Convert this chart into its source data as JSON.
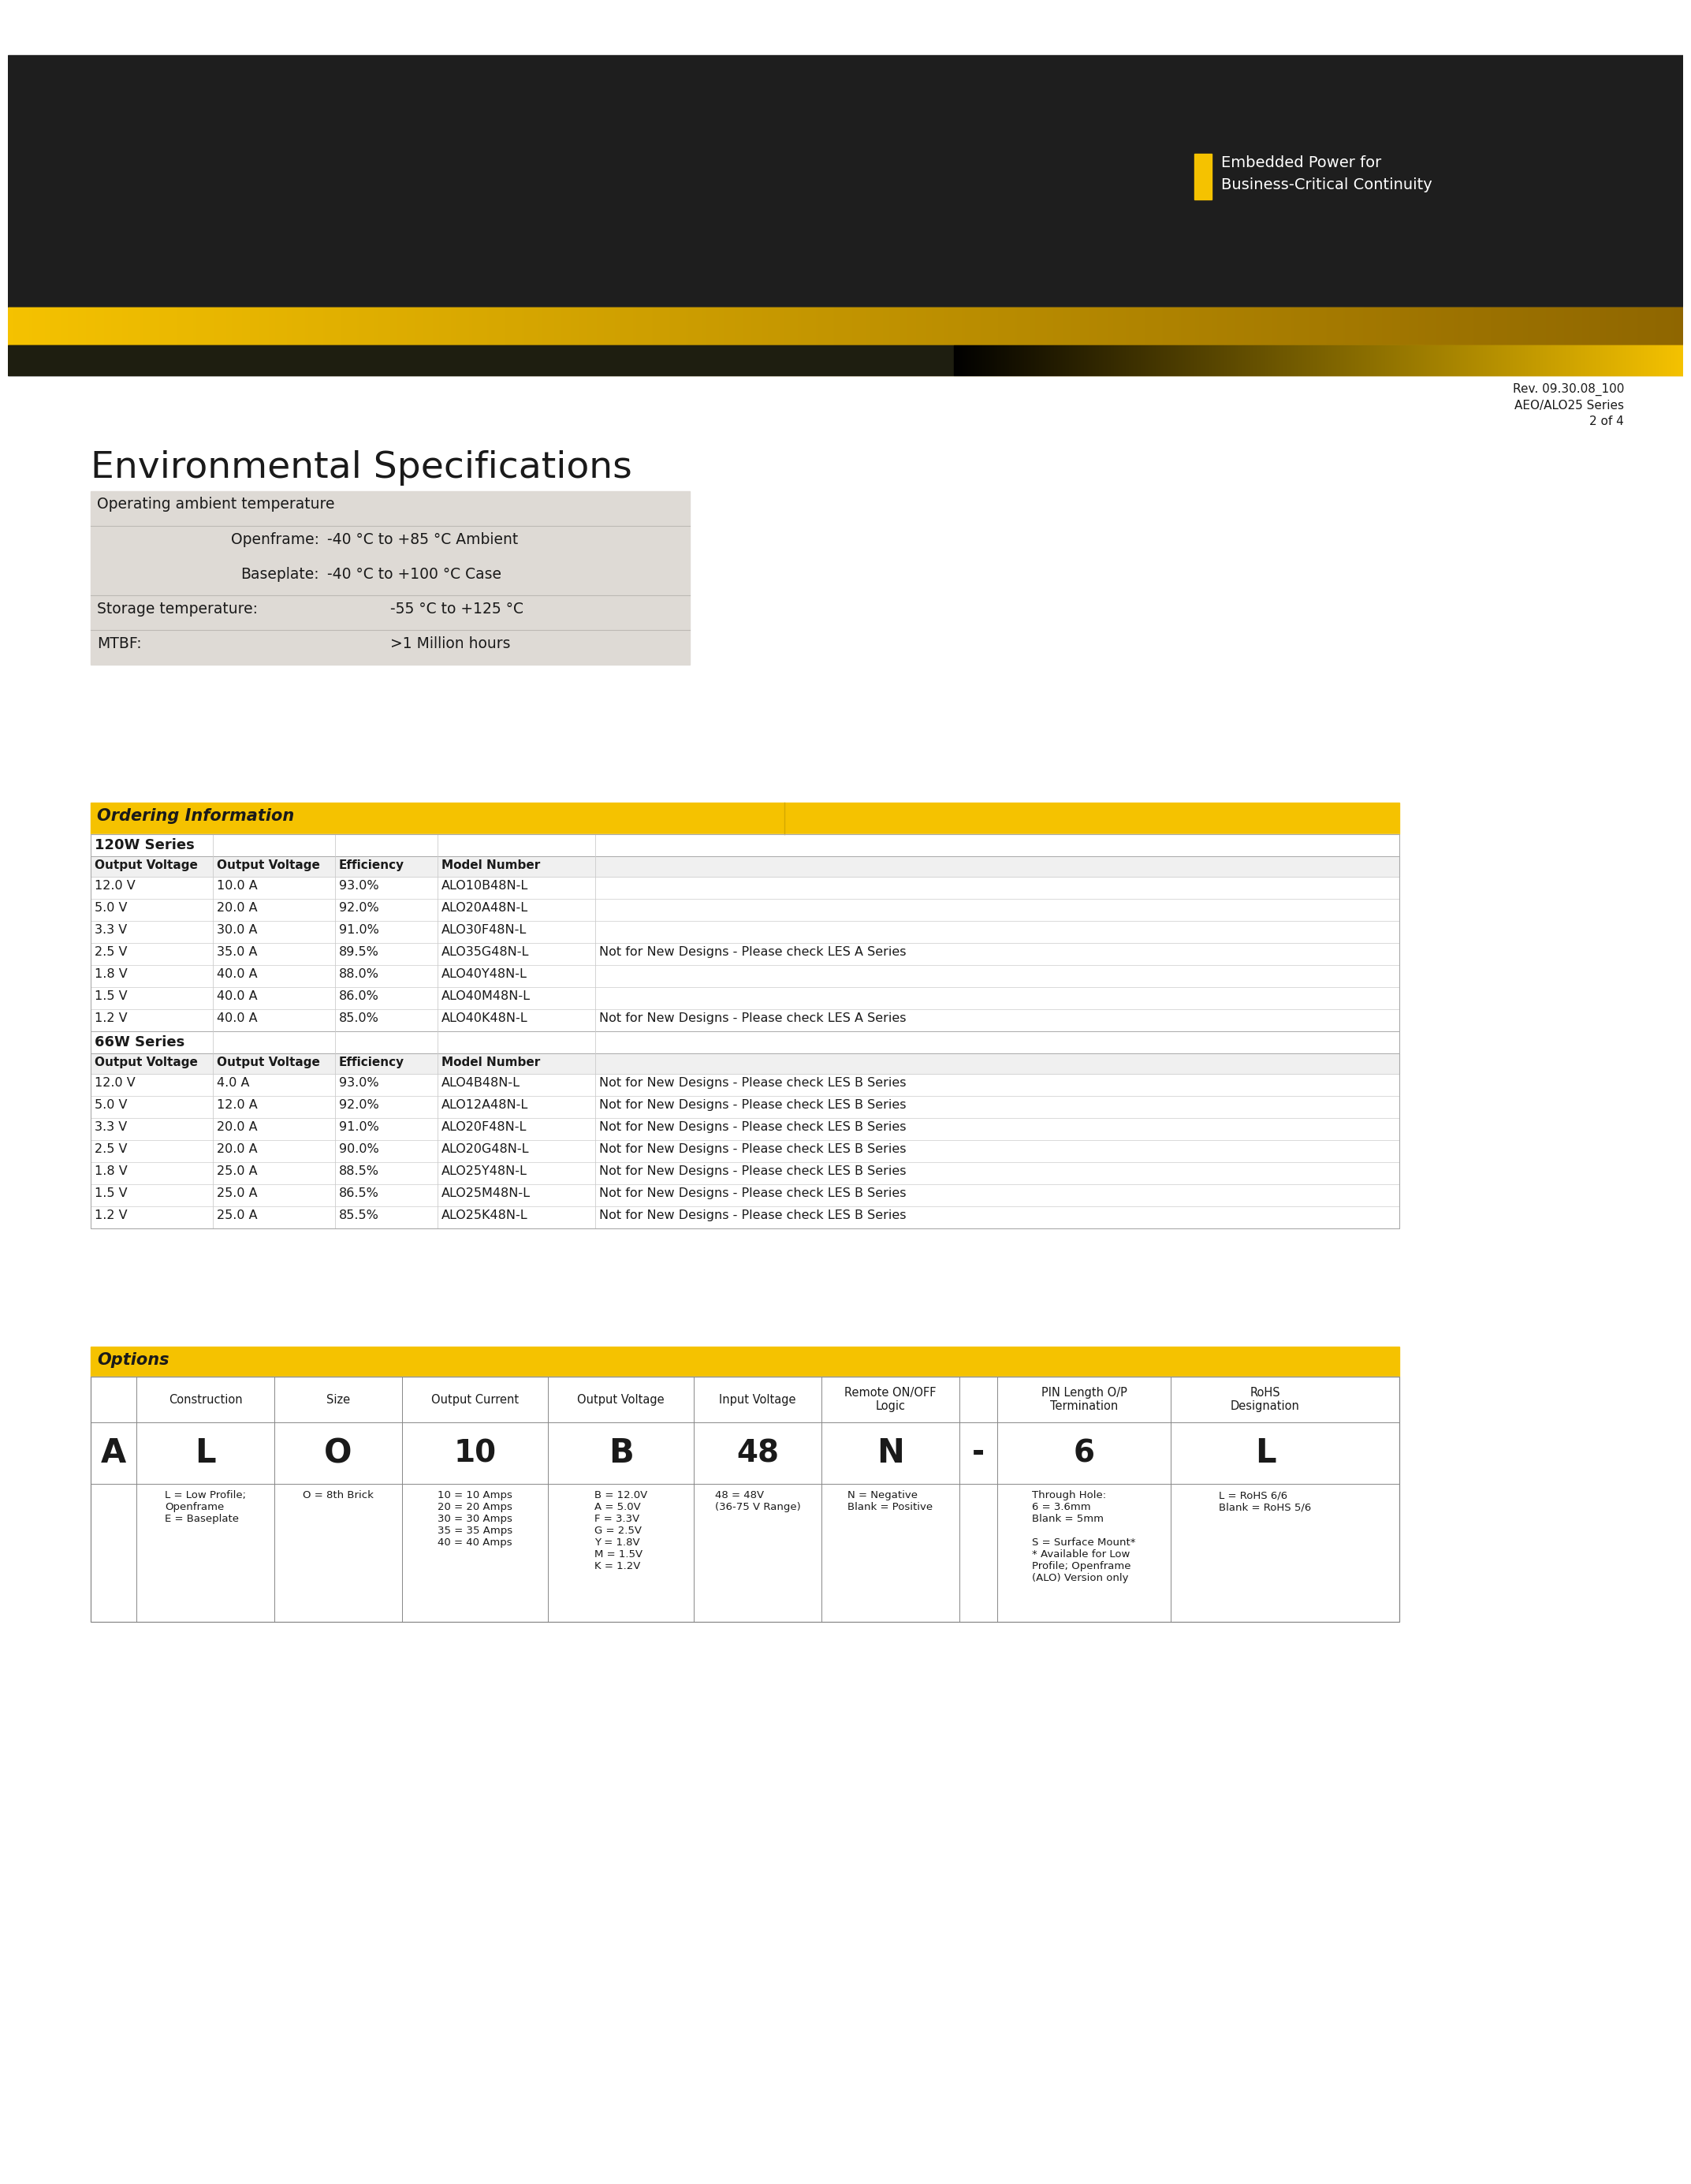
{
  "page_bg": "#ffffff",
  "header_dark_color": "#1e1e1e",
  "yellow_color": "#f5c200",
  "text_color": "#1a1a1a",
  "rev_text": "Rev. 09.30.08_100\nAEO/ALO25 Series\n2 of 4",
  "env_title": "Environmental Specifications",
  "env_table_bg": "#dedad5",
  "ordering_header_bg": "#f5c200",
  "series_120w_label": "120W Series",
  "series_120w_rows": [
    [
      "12.0 V",
      "10.0 A",
      "93.0%",
      "ALO10B48N-L",
      ""
    ],
    [
      "5.0 V",
      "20.0 A",
      "92.0%",
      "ALO20A48N-L",
      ""
    ],
    [
      "3.3 V",
      "30.0 A",
      "91.0%",
      "ALO30F48N-L",
      ""
    ],
    [
      "2.5 V",
      "35.0 A",
      "89.5%",
      "ALO35G48N-L",
      "Not for New Designs - Please check LES A Series"
    ],
    [
      "1.8 V",
      "40.0 A",
      "88.0%",
      "ALO40Y48N-L",
      ""
    ],
    [
      "1.5 V",
      "40.0 A",
      "86.0%",
      "ALO40M48N-L",
      ""
    ],
    [
      "1.2 V",
      "40.0 A",
      "85.0%",
      "ALO40K48N-L",
      "Not for New Designs - Please check LES A Series"
    ]
  ],
  "series_66w_label": "66W Series",
  "series_66w_rows": [
    [
      "12.0 V",
      "4.0 A",
      "93.0%",
      "ALO4B48N-L",
      "Not for New Designs - Please check LES B Series"
    ],
    [
      "5.0 V",
      "12.0 A",
      "92.0%",
      "ALO12A48N-L",
      "Not for New Designs - Please check LES B Series"
    ],
    [
      "3.3 V",
      "20.0 A",
      "91.0%",
      "ALO20F48N-L",
      "Not for New Designs - Please check LES B Series"
    ],
    [
      "2.5 V",
      "20.0 A",
      "90.0%",
      "ALO20G48N-L",
      "Not for New Designs - Please check LES B Series"
    ],
    [
      "1.8 V",
      "25.0 A",
      "88.5%",
      "ALO25Y48N-L",
      "Not for New Designs - Please check LES B Series"
    ],
    [
      "1.5 V",
      "25.0 A",
      "86.5%",
      "ALO25M48N-L",
      "Not for New Designs - Please check LES B Series"
    ],
    [
      "1.2 V",
      "25.0 A",
      "85.5%",
      "ALO25K48N-L",
      "Not for New Designs - Please check LES B Series"
    ]
  ],
  "options_title": "Options",
  "options_col_headers": [
    "",
    "Construction",
    "Size",
    "Output Current",
    "Output Voltage",
    "Input Voltage",
    "Remote ON/OFF\nLogic",
    "",
    "PIN Length O/P\nTermination",
    "RoHS\nDesignation"
  ],
  "options_codes": [
    "A",
    "L",
    "O",
    "10",
    "B",
    "48",
    "N",
    "-",
    "6",
    "L"
  ],
  "options_details": [
    "",
    "L = Low Profile;\nOpenframe\nE = Baseplate",
    "O = 8th Brick",
    "10 = 10 Amps\n20 = 20 Amps\n30 = 30 Amps\n35 = 35 Amps\n40 = 40 Amps",
    "B = 12.0V\nA = 5.0V\nF = 3.3V\nG = 2.5V\nY = 1.8V\nM = 1.5V\nK = 1.2V",
    "48 = 48V\n(36-75 V Range)",
    "N = Negative\nBlank = Positive",
    "",
    "Through Hole:\n6 = 3.6mm\nBlank = 5mm\n\nS = Surface Mount*\n* Available for Low\nProfile; Openframe\n(ALO) Version only",
    "L = RoHS 6/6\nBlank = RoHS 5/6"
  ]
}
